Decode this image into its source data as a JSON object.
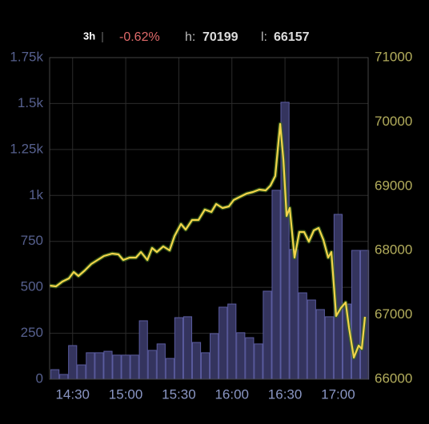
{
  "header": {
    "period": "3h",
    "change": "-0.62%",
    "high_label": "h:",
    "high": "70199",
    "low_label": "l:",
    "low": "66157"
  },
  "chart_data": {
    "type": "combo",
    "xlim": [
      857,
      1037
    ],
    "xticks": [
      {
        "value": 870,
        "label": "14:30"
      },
      {
        "value": 900,
        "label": "15:00"
      },
      {
        "value": 930,
        "label": "15:30"
      },
      {
        "value": 960,
        "label": "16:00"
      },
      {
        "value": 990,
        "label": "16:30"
      },
      {
        "value": 1020,
        "label": "17:00"
      }
    ],
    "ylim": [
      0,
      1750
    ],
    "yticks": [
      0,
      250,
      500,
      750,
      {
        "value": 1000,
        "label": "1k"
      },
      {
        "value": 1250,
        "label": "1.25k"
      },
      {
        "value": 1500,
        "label": "1.5k"
      },
      {
        "value": 1750,
        "label": "1.75k"
      }
    ],
    "y2lim": [
      66000,
      71000
    ],
    "y2ticks": [
      66000,
      67000,
      68000,
      69000,
      70000,
      71000
    ],
    "grid": true,
    "series": [
      {
        "type": "bar",
        "color": "#34345e",
        "x": [
          860,
          865,
          870,
          875,
          880,
          885,
          890,
          895,
          900,
          905,
          910,
          915,
          920,
          925,
          930,
          935,
          940,
          945,
          950,
          955,
          960,
          965,
          970,
          975,
          980,
          985,
          990,
          995,
          1000,
          1005,
          1010,
          1015,
          1020,
          1025,
          1030,
          1035
        ],
        "values": [
          52,
          26,
          183,
          78,
          144,
          144,
          152,
          131,
          131,
          131,
          318,
          157,
          192,
          113,
          335,
          340,
          200,
          144,
          248,
          392,
          409,
          253,
          226,
          192,
          479,
          1028,
          1507,
          706,
          470,
          431,
          379,
          340,
          897,
          409,
          701,
          701
        ]
      },
      {
        "type": "line",
        "axis": "y2",
        "color": "#f2d44a",
        "x": [
          857,
          860.6,
          864.2,
          867.9,
          870.6,
          873.3,
          876.9,
          880.5,
          884.1,
          887.7,
          892.3,
          895.9,
          898.6,
          902.2,
          905.8,
          908.6,
          912.2,
          914.9,
          917.6,
          921.2,
          924.8,
          927.6,
          931.2,
          933.9,
          937.5,
          941.1,
          944.7,
          948.4,
          951.1,
          954.7,
          958.3,
          961,
          964.6,
          968.3,
          971.9,
          975.5,
          979.1,
          981.8,
          984.5,
          987.3,
          989.1,
          990.9,
          992.7,
          995.4,
          998.1,
          1000.8,
          1003.5,
          1006.3,
          1009,
          1011.7,
          1014.4,
          1016.2,
          1018.9,
          1021.6,
          1024.3,
          1026.2,
          1028.9,
          1031.6,
          1033.4,
          1035.2
        ],
        "values": [
          67455,
          67443,
          67517,
          67567,
          67667,
          67604,
          67692,
          67791,
          67853,
          67915,
          67953,
          67940,
          67853,
          67891,
          67891,
          67978,
          67853,
          68040,
          67978,
          68065,
          68002,
          68226,
          68413,
          68326,
          68475,
          68475,
          68637,
          68600,
          68724,
          68662,
          68687,
          68786,
          68836,
          68886,
          68910,
          68948,
          68935,
          69010,
          69159,
          69968,
          69408,
          68537,
          68662,
          67891,
          68289,
          68289,
          68139,
          68313,
          68351,
          68164,
          67891,
          67978,
          66983,
          67107,
          67194,
          66796,
          66336,
          66522,
          66473,
          66970
        ]
      }
    ]
  }
}
